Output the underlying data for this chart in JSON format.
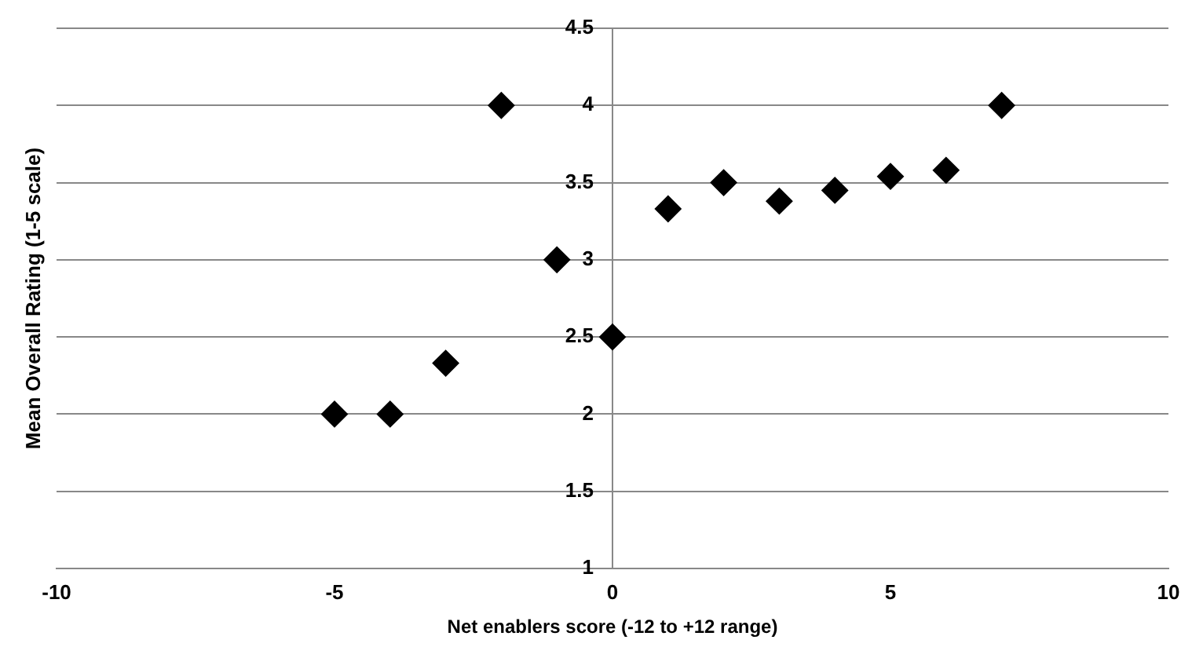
{
  "chart_data": {
    "type": "scatter",
    "xlabel": "Net enablers score (-12 to +12 range)",
    "ylabel": "Mean Overall Rating (1-5 scale)",
    "x": [
      -5,
      -4,
      -3,
      -2,
      -1,
      0,
      1,
      2,
      3,
      4,
      5,
      6,
      7
    ],
    "values": [
      2,
      2,
      2.33,
      4,
      3,
      2.5,
      3.33,
      3.5,
      3.38,
      3.45,
      3.54,
      3.58,
      4
    ],
    "color": "#000000",
    "marker": "diamond",
    "xlim": [
      -10,
      10
    ],
    "xticks": [
      -10,
      -5,
      0,
      5,
      10
    ],
    "ylim": [
      1,
      4.5
    ],
    "yticks": [
      1,
      1.5,
      2,
      2.5,
      3,
      3.5,
      4,
      4.5
    ],
    "grid": "y"
  }
}
